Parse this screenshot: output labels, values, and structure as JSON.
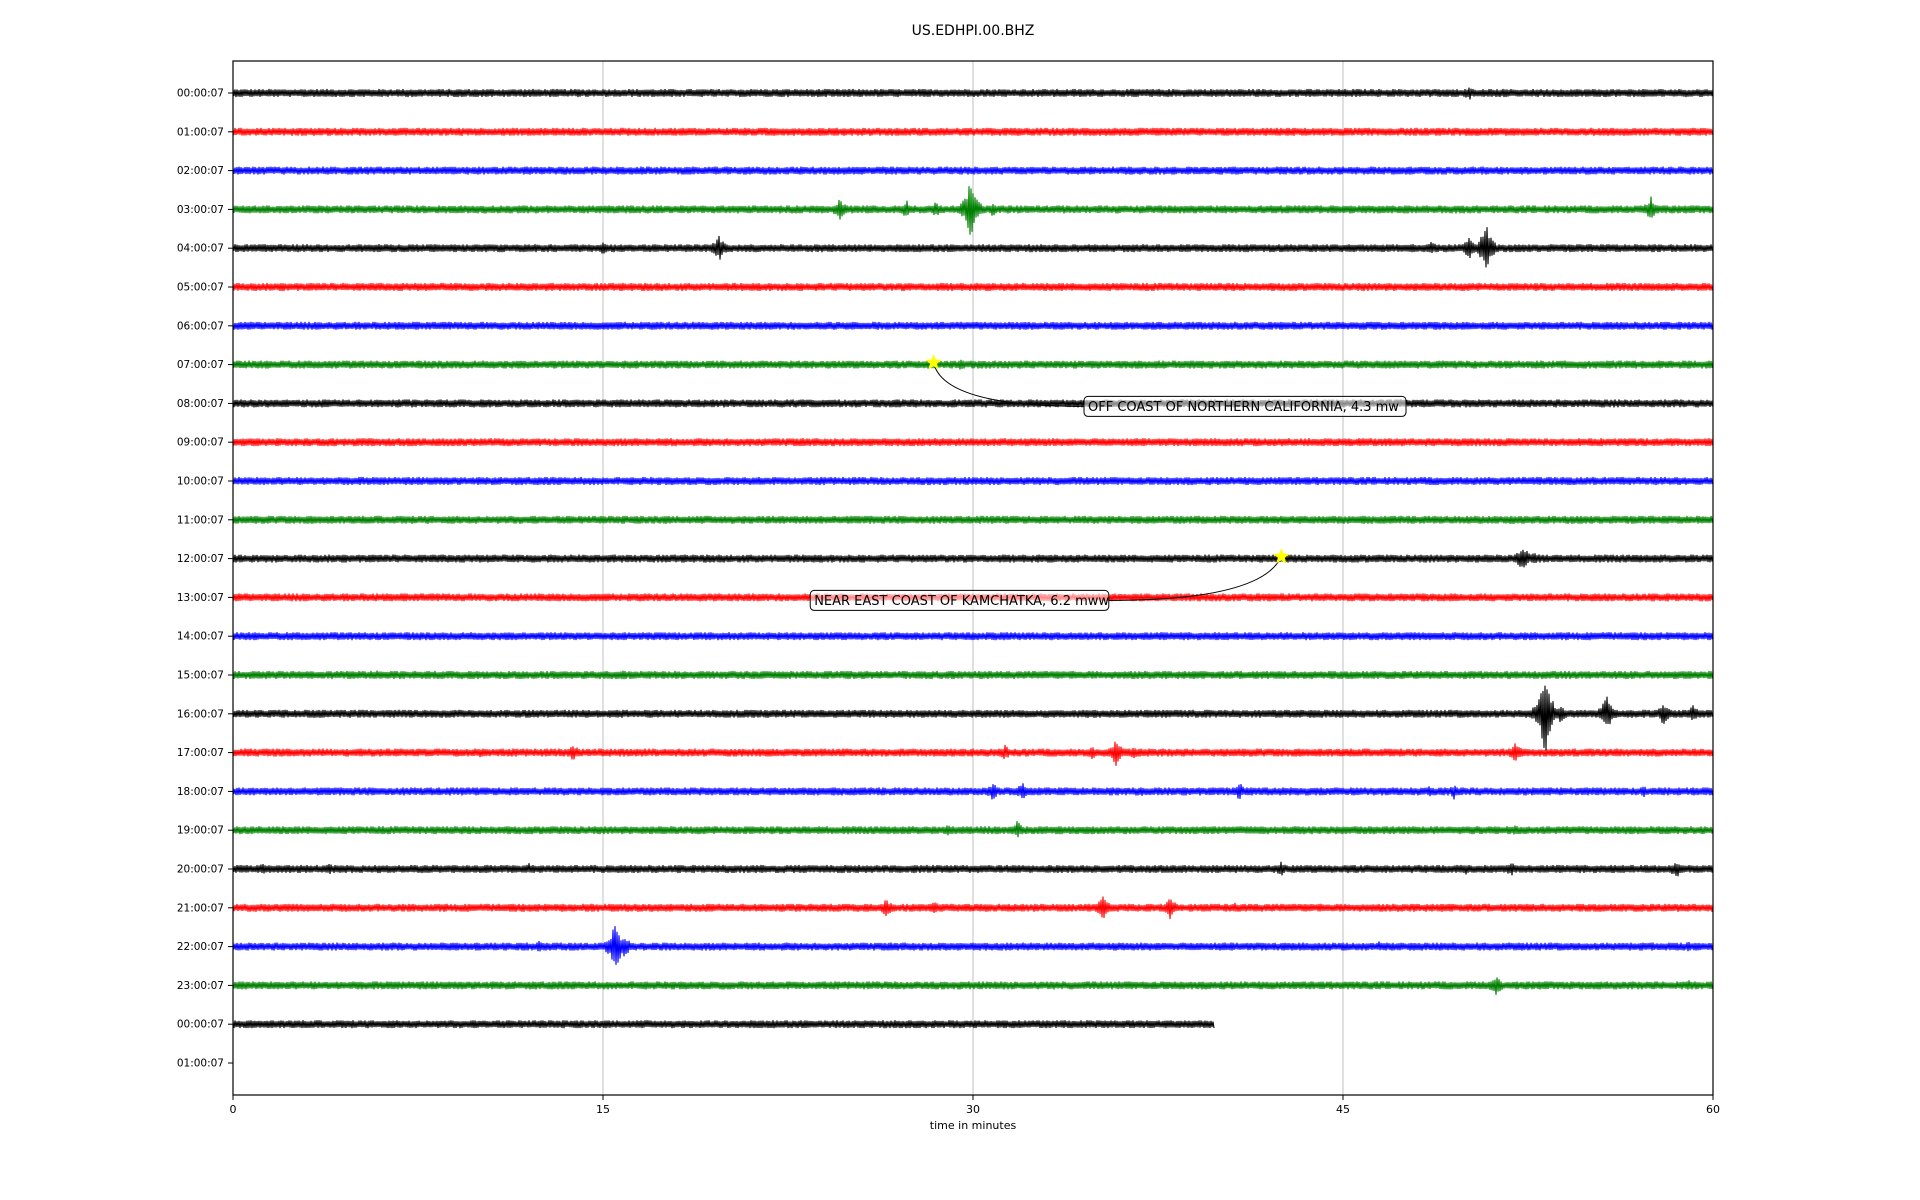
{
  "chart_data": {
    "type": "line",
    "title": "US.EDHPI.00.BHZ",
    "xlabel": "time in minutes",
    "ylabel": "",
    "xlim": [
      0,
      60
    ],
    "xticks": [
      "0",
      "15",
      "30",
      "45",
      "60"
    ],
    "grid": "vertical lines at x ticks",
    "legend": "none",
    "row_labels": [
      "00:00:07",
      "01:00:07",
      "02:00:07",
      "03:00:07",
      "04:00:07",
      "05:00:07",
      "06:00:07",
      "07:00:07",
      "08:00:07",
      "09:00:07",
      "10:00:07",
      "11:00:07",
      "12:00:07",
      "13:00:07",
      "14:00:07",
      "15:00:07",
      "16:00:07",
      "17:00:07",
      "18:00:07",
      "19:00:07",
      "20:00:07",
      "21:00:07",
      "22:00:07",
      "23:00:07",
      "00:00:07",
      "01:00:07"
    ],
    "trace_colors": [
      "#000000",
      "#ff0000",
      "#0000ff",
      "#008000"
    ],
    "series": [
      {
        "row": 0,
        "end_minute": 60,
        "bursts": [
          {
            "t": 50.1,
            "amp": 8
          }
        ]
      },
      {
        "row": 1,
        "end_minute": 60,
        "bursts": []
      },
      {
        "row": 2,
        "end_minute": 60,
        "bursts": []
      },
      {
        "row": 3,
        "end_minute": 60,
        "bursts": [
          {
            "t": 24.6,
            "amp": 12
          },
          {
            "t": 27.3,
            "amp": 10
          },
          {
            "t": 28.5,
            "amp": 8
          },
          {
            "t": 29.9,
            "amp": 32
          },
          {
            "t": 30.8,
            "amp": 8
          },
          {
            "t": 57.5,
            "amp": 14
          }
        ]
      },
      {
        "row": 4,
        "end_minute": 60,
        "bursts": [
          {
            "t": 15.0,
            "amp": 8
          },
          {
            "t": 19.7,
            "amp": 14
          },
          {
            "t": 48.6,
            "amp": 8
          },
          {
            "t": 50.1,
            "amp": 12
          },
          {
            "t": 50.8,
            "amp": 26
          }
        ]
      },
      {
        "row": 5,
        "end_minute": 60,
        "bursts": []
      },
      {
        "row": 6,
        "end_minute": 60,
        "bursts": []
      },
      {
        "row": 7,
        "end_minute": 60,
        "bursts": [
          {
            "t": 29.5,
            "amp": 6
          }
        ]
      },
      {
        "row": 8,
        "end_minute": 60,
        "bursts": []
      },
      {
        "row": 9,
        "end_minute": 60,
        "bursts": []
      },
      {
        "row": 10,
        "end_minute": 60,
        "bursts": []
      },
      {
        "row": 11,
        "end_minute": 60,
        "bursts": []
      },
      {
        "row": 12,
        "end_minute": 60,
        "bursts": [
          {
            "t": 52.3,
            "amp": 16
          },
          {
            "t": 52.8,
            "amp": 8
          }
        ]
      },
      {
        "row": 13,
        "end_minute": 60,
        "bursts": []
      },
      {
        "row": 14,
        "end_minute": 60,
        "bursts": []
      },
      {
        "row": 15,
        "end_minute": 60,
        "bursts": [
          {
            "t": 5.8,
            "amp": 6
          },
          {
            "t": 15.8,
            "amp": 6
          }
        ]
      },
      {
        "row": 16,
        "end_minute": 60,
        "bursts": [
          {
            "t": 53.0,
            "amp": 14
          },
          {
            "t": 53.2,
            "amp": 46
          },
          {
            "t": 53.8,
            "amp": 10
          },
          {
            "t": 55.7,
            "amp": 20
          },
          {
            "t": 58.0,
            "amp": 12
          },
          {
            "t": 59.2,
            "amp": 10
          }
        ]
      },
      {
        "row": 17,
        "end_minute": 60,
        "bursts": [
          {
            "t": 10.0,
            "amp": 6
          },
          {
            "t": 13.8,
            "amp": 10
          },
          {
            "t": 31.3,
            "amp": 8
          },
          {
            "t": 34.8,
            "amp": 8
          },
          {
            "t": 35.8,
            "amp": 14
          },
          {
            "t": 36.5,
            "amp": 8
          },
          {
            "t": 52.0,
            "amp": 12
          }
        ]
      },
      {
        "row": 18,
        "end_minute": 60,
        "bursts": [
          {
            "t": 30.8,
            "amp": 10
          },
          {
            "t": 32.0,
            "amp": 10
          },
          {
            "t": 36.8,
            "amp": 6
          },
          {
            "t": 40.8,
            "amp": 10
          },
          {
            "t": 48.5,
            "amp": 6
          },
          {
            "t": 49.5,
            "amp": 8
          },
          {
            "t": 54.7,
            "amp": 6
          },
          {
            "t": 57.2,
            "amp": 6
          }
        ]
      },
      {
        "row": 19,
        "end_minute": 60,
        "bursts": [
          {
            "t": 29.0,
            "amp": 6
          },
          {
            "t": 31.8,
            "amp": 10
          },
          {
            "t": 52.0,
            "amp": 6
          }
        ]
      },
      {
        "row": 20,
        "end_minute": 60,
        "bursts": [
          {
            "t": 1.2,
            "amp": 6
          },
          {
            "t": 3.9,
            "amp": 6
          },
          {
            "t": 12.0,
            "amp": 6
          },
          {
            "t": 42.5,
            "amp": 8
          },
          {
            "t": 50.0,
            "amp": 6
          },
          {
            "t": 51.8,
            "amp": 8
          },
          {
            "t": 58.5,
            "amp": 10
          }
        ]
      },
      {
        "row": 21,
        "end_minute": 60,
        "bursts": [
          {
            "t": 26.5,
            "amp": 10
          },
          {
            "t": 28.4,
            "amp": 8
          },
          {
            "t": 35.3,
            "amp": 14
          },
          {
            "t": 38.0,
            "amp": 12
          },
          {
            "t": 40.6,
            "amp": 6
          }
        ]
      },
      {
        "row": 22,
        "end_minute": 60,
        "bursts": [
          {
            "t": 12.4,
            "amp": 6
          },
          {
            "t": 15.5,
            "amp": 26
          },
          {
            "t": 15.9,
            "amp": 12
          },
          {
            "t": 46.5,
            "amp": 6
          },
          {
            "t": 59.0,
            "amp": 6
          }
        ]
      },
      {
        "row": 23,
        "end_minute": 60,
        "bursts": [
          {
            "t": 51.2,
            "amp": 12
          },
          {
            "t": 59.0,
            "amp": 6
          }
        ]
      },
      {
        "row": 24,
        "end_minute": 39.8,
        "bursts": [
          {
            "t": 19.4,
            "amp": 4
          },
          {
            "t": 28.6,
            "amp": 4
          }
        ]
      }
    ],
    "annotations": [
      {
        "text": "OFF COAST OF NORTHERN CALIFORNIA, 4.3 mw",
        "row": 7,
        "minute": 28.4,
        "box_row": 8,
        "box_minute": 34.5
      },
      {
        "text": "NEAR EAST COAST OF KAMCHATKA, 6.2 mww",
        "row": 12,
        "minute": 42.5,
        "box_row": 13,
        "box_minute": 23.4
      }
    ]
  }
}
